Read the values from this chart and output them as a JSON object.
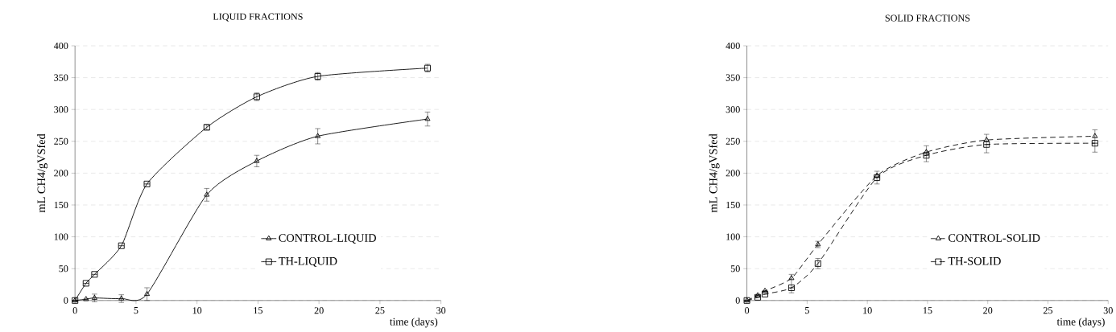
{
  "chart_data": [
    {
      "type": "line",
      "title": "LIQUID FRACTIONS",
      "xlabel": "time (days)",
      "ylabel": "mL CH4/gVSfed",
      "xlim": [
        0,
        30
      ],
      "xticks": [
        0,
        5,
        10,
        15,
        20,
        25,
        30
      ],
      "ylim": [
        0,
        400
      ],
      "yticks": [
        0,
        50,
        100,
        150,
        200,
        250,
        300,
        350,
        400
      ],
      "grid": "y",
      "legend": "right",
      "line_style": "solid",
      "series": [
        {
          "name": "CONTROL-LIQUID",
          "color": "#000000",
          "marker": "triangle",
          "x": [
            0,
            0.9,
            1.6,
            3.8,
            5.9,
            10.8,
            14.9,
            19.9,
            28.9
          ],
          "values": [
            0,
            2,
            4,
            3,
            10,
            166,
            219,
            258,
            285
          ],
          "errors": [
            null,
            null,
            6,
            6,
            10,
            10,
            9,
            12,
            11
          ]
        },
        {
          "name": "TH-LIQUID",
          "color": "#000000",
          "marker": "square",
          "x": [
            0,
            0.9,
            1.6,
            3.8,
            5.9,
            10.8,
            14.9,
            19.9,
            28.9
          ],
          "values": [
            0,
            27,
            41,
            86,
            183,
            272,
            320,
            352,
            365
          ],
          "errors": [
            null,
            null,
            null,
            null,
            null,
            4,
            6,
            6,
            6
          ]
        }
      ]
    },
    {
      "type": "line",
      "title": "SOLID FRACTIONS",
      "xlabel": "time (days)",
      "ylabel": "mL CH4/gVSfed",
      "xlim": [
        0,
        30
      ],
      "xticks": [
        0,
        5,
        10,
        15,
        20,
        25,
        30
      ],
      "ylim": [
        0,
        400
      ],
      "yticks": [
        0,
        50,
        100,
        150,
        200,
        250,
        300,
        350,
        400
      ],
      "grid": "y",
      "legend": "right",
      "line_style": "dashed",
      "series": [
        {
          "name": "CONTROL-SOLID",
          "color": "#000000",
          "marker": "triangle",
          "x": [
            0,
            0.9,
            1.5,
            3.7,
            5.9,
            10.8,
            14.9,
            19.9,
            28.9
          ],
          "values": [
            0,
            8,
            15,
            35,
            88,
            196,
            233,
            252,
            258
          ],
          "errors": [
            null,
            null,
            null,
            [
              12,
              41
            ],
            5,
            [
              183,
              203
            ],
            [
              218,
              243
            ],
            [
              232,
              261
            ],
            [
              233,
              268
            ]
          ]
        },
        {
          "name": "TH-SOLID",
          "color": "#000000",
          "marker": "square",
          "x": [
            0,
            0.9,
            1.5,
            3.7,
            5.9,
            10.8,
            14.9,
            19.9,
            28.9
          ],
          "values": [
            0,
            5,
            10,
            20,
            58,
            193,
            228,
            245,
            247
          ],
          "errors": [
            null,
            null,
            null,
            null,
            8,
            null,
            null,
            null,
            null
          ]
        }
      ]
    }
  ]
}
